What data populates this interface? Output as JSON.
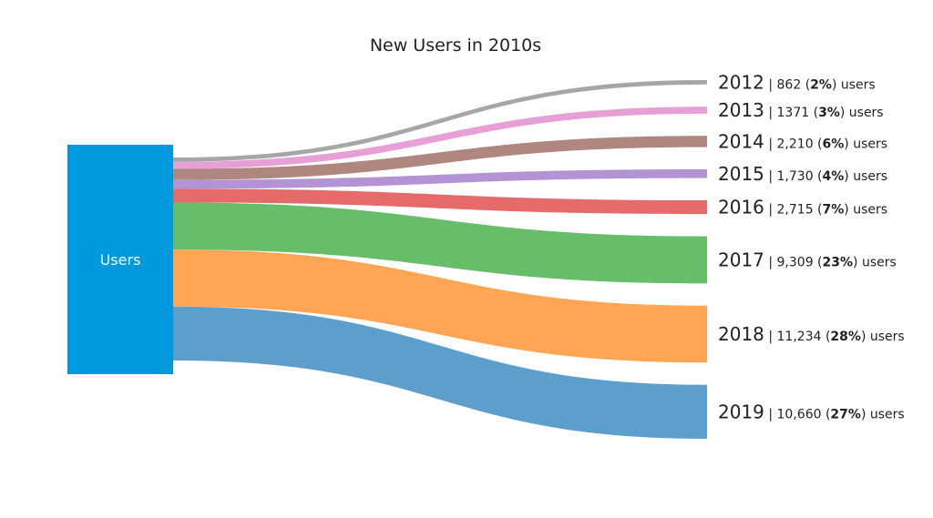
{
  "chart_data": {
    "type": "sankey",
    "title": "New Users in 2010s",
    "source": {
      "label": "Users",
      "color": "#0099dd"
    },
    "unit_label": "users",
    "flows": [
      {
        "year": "2012",
        "value": 862,
        "value_text": "862",
        "pct": "2%",
        "color": "#a6a6a6"
      },
      {
        "year": "2013",
        "value": 1371,
        "value_text": "1371",
        "pct": "3%",
        "color": "#e79fd6"
      },
      {
        "year": "2014",
        "value": 2210,
        "value_text": "2,210",
        "pct": "6%",
        "color": "#b08780"
      },
      {
        "year": "2015",
        "value": 1730,
        "value_text": "1,730",
        "pct": "4%",
        "color": "#b493d4"
      },
      {
        "year": "2016",
        "value": 2715,
        "value_text": "2,715",
        "pct": "7%",
        "color": "#e56a6a"
      },
      {
        "year": "2017",
        "value": 9309,
        "value_text": "9,309",
        "pct": "23%",
        "color": "#66bd6a"
      },
      {
        "year": "2018",
        "value": 11234,
        "value_text": "11,234",
        "pct": "28%",
        "color": "#fea653"
      },
      {
        "year": "2019",
        "value": 10660,
        "value_text": "10,660",
        "pct": "27%",
        "color": "#5d9fcc"
      }
    ]
  }
}
